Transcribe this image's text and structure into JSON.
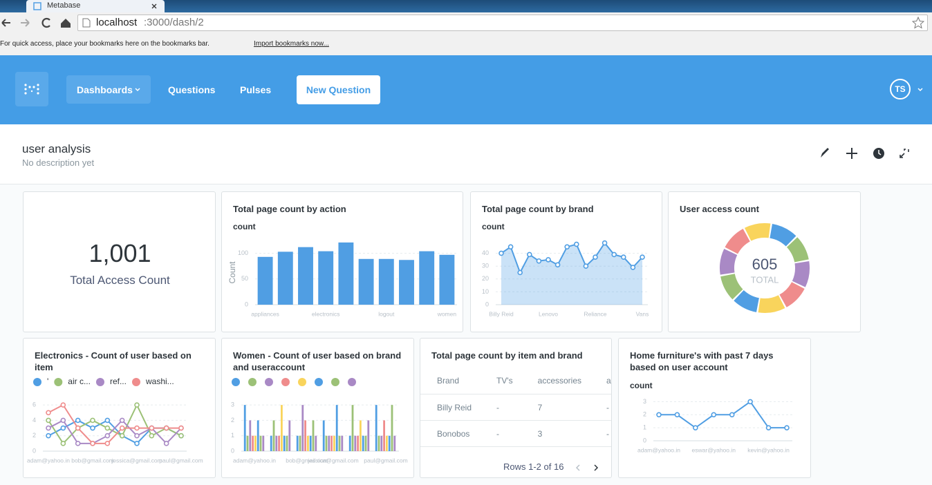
{
  "browser": {
    "tab_title": "Metabase",
    "url_host": "localhost",
    "url_path": ":3000/dash/2",
    "bookmarks_hint": "For quick access, place your bookmarks here on the bookmarks bar.",
    "import_link": "Import bookmarks now..."
  },
  "nav": {
    "dashboards": "Dashboards",
    "questions": "Questions",
    "pulses": "Pulses",
    "new_question": "New Question",
    "avatar": "TS"
  },
  "dashboard": {
    "title": "user analysis",
    "description": "No description yet"
  },
  "cards": [
    {
      "scalar": {
        "value": "1,001",
        "label": "Total Access Count"
      }
    },
    {
      "title": "Total page count by action",
      "subtitle": "count",
      "chart": {
        "type": "bar",
        "y_label": "Count",
        "categories": [
          "appliances",
          null,
          null,
          "electronics",
          null,
          null,
          "logout",
          null,
          null,
          "women"
        ],
        "values": [
          93,
          103,
          112,
          104,
          121,
          89,
          89,
          87,
          104,
          97
        ],
        "color": "#509ee3",
        "ylim": [
          0,
          125
        ],
        "yticks": [
          0,
          50,
          100
        ],
        "grid": true
      }
    },
    {
      "title": "Total page count by brand",
      "subtitle": "count",
      "chart": {
        "type": "area",
        "categories": [
          "Billy Reid",
          null,
          null,
          null,
          null,
          "Lenovo",
          null,
          null,
          null,
          null,
          "Reliance",
          null,
          null,
          null,
          null,
          "Vans"
        ],
        "values": [
          40,
          45,
          25,
          39,
          34,
          35,
          31,
          45,
          47,
          30,
          37,
          48,
          39,
          37,
          29,
          37
        ],
        "color": "#509ee3",
        "ylim": [
          0,
          50
        ],
        "yticks": [
          0,
          10,
          20,
          30,
          40
        ],
        "grid": true
      }
    },
    {
      "title": "User access count",
      "chart": {
        "type": "donut",
        "values": [
          62,
          58,
          61,
          60,
          63,
          59,
          60,
          61,
          60,
          61
        ],
        "colors": [
          "#509ee3",
          "#9cc177",
          "#a989c5",
          "#ef8c8c",
          "#f9d45c",
          "#509ee3",
          "#9cc177",
          "#a989c5",
          "#ef8c8c",
          "#f9d45c"
        ],
        "total": 605,
        "total_label": "TOTAL"
      }
    },
    {
      "title": "Electronics - Count of user based on item",
      "chart": {
        "type": "line",
        "categories": [
          "adam@yahoo.in",
          null,
          null,
          "bob@gmail.com",
          null,
          null,
          "jessica@gmail.com",
          null,
          null,
          "paul@gmail.com"
        ],
        "series": [
          {
            "name": "'",
            "color": "#509ee3",
            "values": [
              2,
              3,
              4,
              3,
              4,
              2,
              1,
              3,
              3,
              2
            ]
          },
          {
            "name": "air c...",
            "color": "#9cc177",
            "values": [
              4,
              1,
              3,
              4,
              3,
              2,
              6,
              2,
              3,
              2
            ]
          },
          {
            "name": "ref...",
            "color": "#a989c5",
            "values": [
              3,
              4,
              1,
              1,
              2,
              4,
              2,
              3,
              1,
              3
            ]
          },
          {
            "name": "washi...",
            "color": "#ef8c8c",
            "values": [
              5,
              6,
              3,
              1,
              1,
              3,
              3,
              3,
              3,
              3
            ]
          }
        ],
        "ylim": [
          0,
          7
        ],
        "yticks": [
          0,
          2,
          4,
          6
        ],
        "grid": true,
        "legend": "top"
      }
    },
    {
      "title": "Women - Count of user based on brand and useraccount",
      "chart": {
        "type": "bar",
        "categories": [
          "adam@yahoo.in",
          null,
          "bob@gmail.com",
          "jessica@gmail.com",
          null,
          "paul@gmail.com"
        ],
        "series": [
          {
            "color": "#509ee3",
            "values": [
              3,
              1,
              1,
              2,
              1,
              3
            ]
          },
          {
            "color": "#9cc177",
            "values": [
              1,
              2,
              1,
              1,
              3,
              1
            ]
          },
          {
            "color": "#a989c5",
            "values": [
              2,
              1,
              3,
              1,
              1,
              1
            ]
          },
          {
            "color": "#ef8c8c",
            "values": [
              1,
              1,
              2,
              1,
              1,
              2
            ]
          },
          {
            "color": "#f9d45c",
            "values": [
              1,
              3,
              1,
              1,
              2,
              1
            ]
          },
          {
            "color": "#509ee3",
            "values": [
              2,
              1,
              1,
              3,
              1,
              1
            ]
          },
          {
            "color": "#9cc177",
            "values": [
              1,
              1,
              2,
              1,
              1,
              3
            ]
          },
          {
            "color": "#a989c5",
            "values": [
              1,
              2,
              1,
              1,
              2,
              1
            ]
          }
        ],
        "ylim": [
          0,
          3.5
        ],
        "yticks": [
          0,
          1,
          2,
          3
        ],
        "grid": true,
        "legend": "top"
      }
    },
    {
      "title": "Total page count by item and brand",
      "table": {
        "columns": [
          "Brand",
          "TV's",
          "accessories",
          "air cc"
        ],
        "rows": [
          [
            "Billy Reid",
            "-",
            "7",
            "-"
          ],
          [
            "Bonobos",
            "-",
            "3",
            "-"
          ]
        ],
        "footer": "Rows 1-2 of 16"
      }
    },
    {
      "title": "Home furniture's with past 7 days based on user account",
      "subtitle": "count",
      "chart": {
        "type": "line",
        "categories": [
          "adam@yahoo.in",
          null,
          null,
          "eswar@yahoo.in",
          null,
          null,
          "kevin@yahoo.in",
          null
        ],
        "values": [
          2,
          2,
          1,
          2,
          2,
          3,
          1,
          1
        ],
        "color": "#509ee3",
        "ylim": [
          0,
          3.5
        ],
        "yticks": [
          0,
          1,
          2,
          3
        ],
        "grid": true
      }
    }
  ]
}
